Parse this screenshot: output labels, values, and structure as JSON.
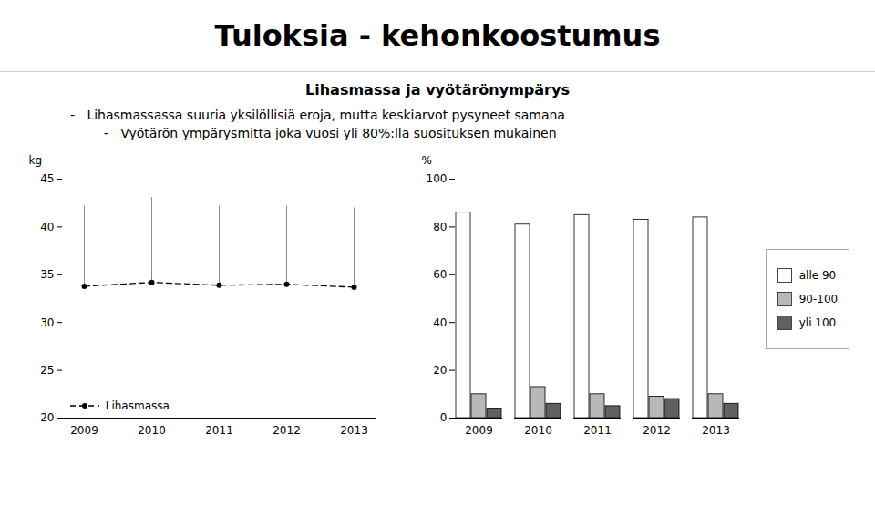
{
  "title": "Tuloksia - kehonkoostumus",
  "subtitle": "Lihasmassa ja vyötärönympärys",
  "annotations": [
    "-   Lihasmassassa suuria yksilöllisiä eroja, mutta keskiarvot pysyneet samana",
    "    -   Vyötärön ympärysmitta joka vuosi yli 80%:lla suosituksen mukainen"
  ],
  "chart_data": [
    {
      "type": "line",
      "categories": [
        "2009",
        "2010",
        "2011",
        "2012",
        "2013"
      ],
      "series": [
        {
          "name": "Lihasmassa",
          "color": "#000000",
          "values": [
            33.8,
            34.2,
            33.9,
            34.0,
            33.7
          ],
          "error_upper": [
            8.4,
            8.9,
            8.3,
            8.2,
            8.3
          ],
          "line_style": "dashed",
          "marker": "circle"
        }
      ],
      "ylabel": "kg",
      "ylim": [
        20,
        45
      ],
      "yticks": [
        20,
        25,
        30,
        35,
        40,
        45
      ],
      "legend": "lower left",
      "grid": false
    },
    {
      "type": "bar",
      "categories": [
        "2009",
        "2010",
        "2011",
        "2012",
        "2013"
      ],
      "series": [
        {
          "name": "alle 90",
          "color": "#ffffff",
          "values": [
            86,
            81,
            85,
            83,
            84
          ]
        },
        {
          "name": "90-100",
          "color": "#b8b8b8",
          "values": [
            10,
            13,
            10,
            9,
            10
          ]
        },
        {
          "name": "yli 100",
          "color": "#606060",
          "values": [
            4,
            6,
            5,
            8,
            6
          ]
        }
      ],
      "ylabel": "%",
      "ylim": [
        0,
        100
      ],
      "yticks": [
        0,
        20,
        40,
        60,
        80,
        100
      ],
      "legend": "right",
      "grid": false
    }
  ]
}
